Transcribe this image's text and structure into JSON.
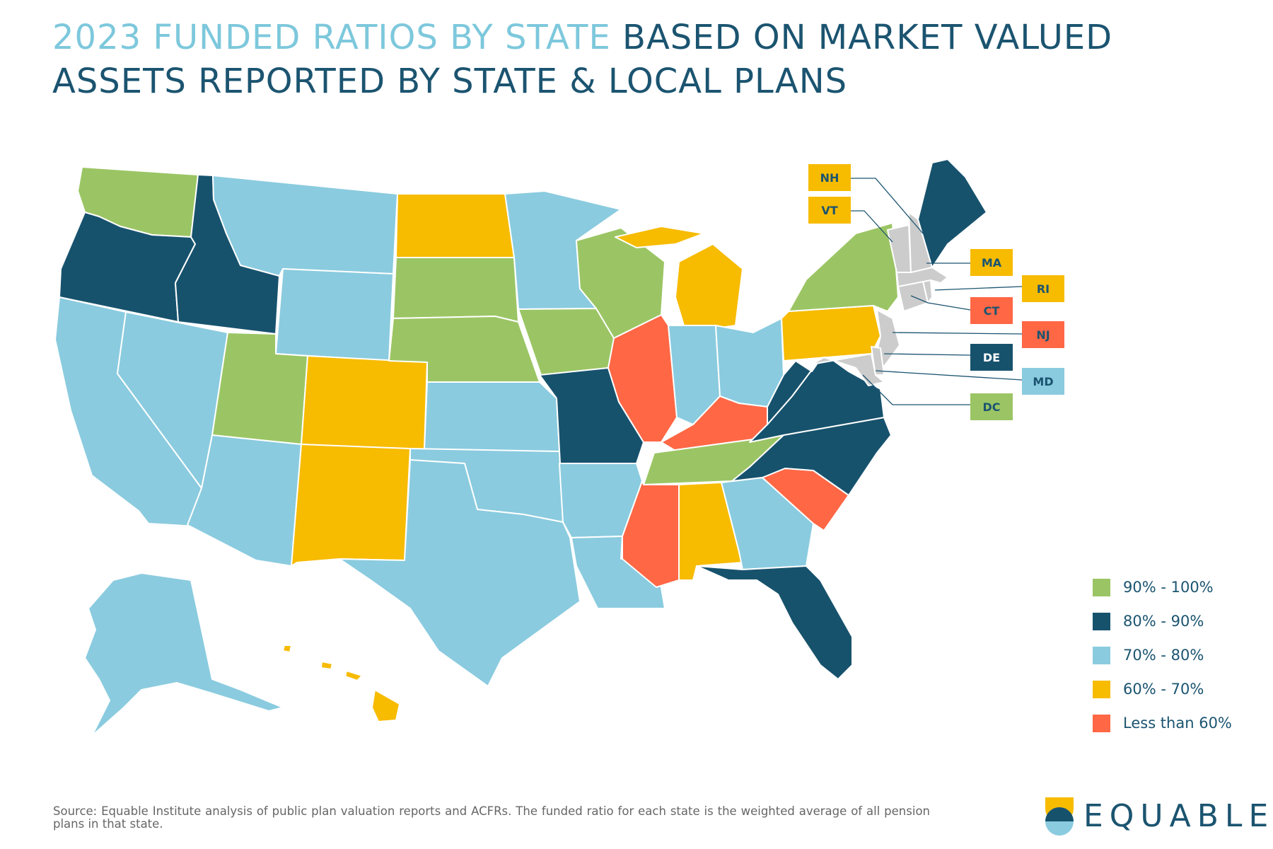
{
  "title": {
    "highlight": "2023 FUNDED RATIOS BY STATE",
    "rest": " BASED ON MARKET VALUED ASSETS REPORTED BY STATE & LOCAL PLANS"
  },
  "colors": {
    "90_100": "#9bc564",
    "80_90": "#17526d",
    "70_80": "#8acbdf",
    "60_70": "#f7bb00",
    "lt60": "#ff6745",
    "title_highlight": "#7dc8dc",
    "title_main": "#1b5470"
  },
  "legend": [
    {
      "label": "90% - 100%",
      "color": "#9bc564"
    },
    {
      "label": "80% - 90%",
      "color": "#17526d"
    },
    {
      "label": "70% - 80%",
      "color": "#8acbdf"
    },
    {
      "label": "60% - 70%",
      "color": "#f7bb00"
    },
    {
      "label": "Less than 60%",
      "color": "#ff6745"
    }
  ],
  "callouts": [
    {
      "label": "NH",
      "category": "60_70"
    },
    {
      "label": "VT",
      "category": "60_70"
    },
    {
      "label": "MA",
      "category": "60_70"
    },
    {
      "label": "RI",
      "category": "60_70"
    },
    {
      "label": "CT",
      "category": "lt60"
    },
    {
      "label": "NJ",
      "category": "lt60"
    },
    {
      "label": "DE",
      "category": "80_90"
    },
    {
      "label": "MD",
      "category": "70_80"
    },
    {
      "label": "DC",
      "category": "90_100"
    }
  ],
  "state_categories": {
    "WA": "90_100",
    "OR": "80_90",
    "CA": "70_80",
    "ID": "80_90",
    "NV": "70_80",
    "MT": "70_80",
    "WY": "70_80",
    "UT": "90_100",
    "AZ": "70_80",
    "CO": "60_70",
    "NM": "60_70",
    "ND": "60_70",
    "SD": "90_100",
    "NE": "90_100",
    "KS": "70_80",
    "OK": "70_80",
    "TX": "70_80",
    "MN": "70_80",
    "IA": "90_100",
    "MO": "80_90",
    "AR": "70_80",
    "LA": "70_80",
    "WI": "90_100",
    "IL": "lt60",
    "MI": "60_70",
    "IN": "70_80",
    "OH": "70_80",
    "KY": "lt60",
    "TN": "90_100",
    "MS": "lt60",
    "AL": "60_70",
    "GA": "70_80",
    "FL": "80_90",
    "SC": "lt60",
    "NC": "80_90",
    "VA": "80_90",
    "WV": "80_90",
    "PA": "60_70",
    "NY": "90_100",
    "ME": "80_90",
    "AK": "70_80",
    "HI": "60_70"
  },
  "source": "Source: Equable Institute analysis of public plan valuation reports and ACFRs. The funded ratio for each state is the weighted average of all pension plans in that state.",
  "logo": {
    "text": "EQUABLE"
  }
}
